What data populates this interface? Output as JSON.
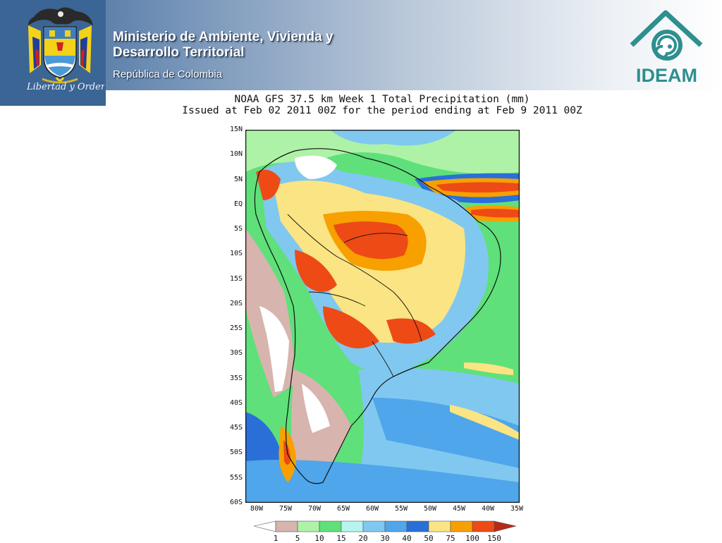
{
  "header": {
    "ministry_line1": "Ministerio de Ambiente, Vivienda y",
    "ministry_line2": "Desarrollo Territorial",
    "republic": "República de Colombia",
    "emblem_motto": "Libertad y Orden",
    "logo_text": "IDEAM",
    "colors": {
      "band_dark": "#3d6797",
      "emblem_bg": "#3a6594",
      "logo_teal": "#2e8f8f"
    }
  },
  "map": {
    "title_line1": "NOAA GFS 37.5 km Week 1 Total Precipitation (mm)",
    "title_line2": "Issued at Feb 02 2011 00Z for the period ending at Feb 9 2011 00Z",
    "lat_labels": [
      "15N",
      "10N",
      "5N",
      "EQ",
      "5S",
      "10S",
      "15S",
      "20S",
      "25S",
      "30S",
      "35S",
      "40S",
      "45S",
      "50S",
      "55S",
      "60S"
    ],
    "lon_labels": [
      "80W",
      "75W",
      "70W",
      "65W",
      "60W",
      "55W",
      "50W",
      "45W",
      "40W",
      "35W"
    ],
    "lat_range": [
      15,
      -60
    ],
    "lon_range": [
      -80,
      -35
    ],
    "legend": {
      "labels": [
        "1",
        "5",
        "10",
        "15",
        "20",
        "30",
        "40",
        "50",
        "75",
        "100",
        "150"
      ],
      "colors": [
        "#ffffff",
        "#d8b4ae",
        "#aef2a8",
        "#5fe07a",
        "#b7f4f0",
        "#80c8f0",
        "#4fa6ea",
        "#2a6fd8",
        "#fbe483",
        "#f7a000",
        "#ee4a16",
        "#b62a18"
      ]
    }
  }
}
